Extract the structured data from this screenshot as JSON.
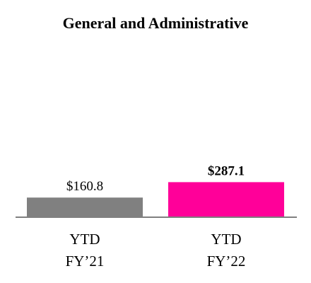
{
  "chart_data": {
    "type": "bar",
    "title": "General and Administrative",
    "xlabel": "",
    "ylabel": "",
    "categories": [
      {
        "line1": "YTD",
        "line2": "FY’21"
      },
      {
        "line1": "YTD",
        "line2": "FY’22"
      }
    ],
    "values": [
      160.8,
      287.1
    ],
    "value_labels": [
      "$160.8",
      "$287.1"
    ],
    "value_label_bold": [
      false,
      true
    ],
    "colors": [
      "#808080",
      "#FF0099"
    ],
    "axis_color": "#808080",
    "grid": false,
    "legend": "none"
  }
}
